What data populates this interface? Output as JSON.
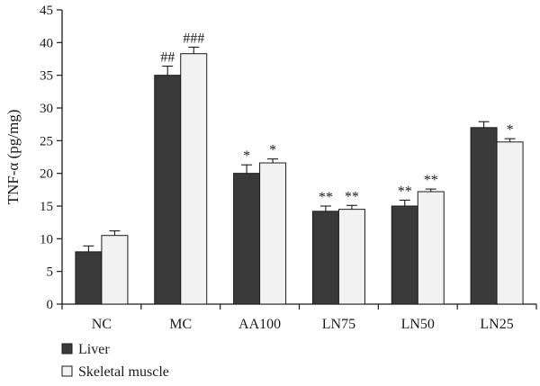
{
  "chart_data": {
    "type": "bar",
    "ylabel": "TNF-α (pg/mg)",
    "xlabel": "",
    "ylim": [
      0,
      45
    ],
    "yticks": [
      0,
      5,
      10,
      15,
      20,
      25,
      30,
      35,
      40,
      45
    ],
    "categories": [
      "NC",
      "MC",
      "AA100",
      "LN75",
      "LN50",
      "LN25"
    ],
    "series": [
      {
        "name": "Liver",
        "color": "#3a3a3a",
        "values": [
          8.0,
          35.0,
          20.0,
          14.2,
          15.0,
          27.0
        ],
        "errors": [
          0.9,
          1.4,
          1.3,
          0.8,
          0.9,
          0.9
        ],
        "annotations": [
          "",
          "##",
          "*",
          "**",
          "**",
          ""
        ]
      },
      {
        "name": "Skeletal muscle",
        "color": "#f2f2f2",
        "values": [
          10.5,
          38.3,
          21.6,
          14.5,
          17.2,
          24.8
        ],
        "errors": [
          0.7,
          1.0,
          0.6,
          0.6,
          0.4,
          0.5
        ],
        "annotations": [
          "",
          "###",
          "*",
          "**",
          "**",
          "*"
        ]
      }
    ],
    "legend_position": "bottom-left",
    "grid": false
  }
}
